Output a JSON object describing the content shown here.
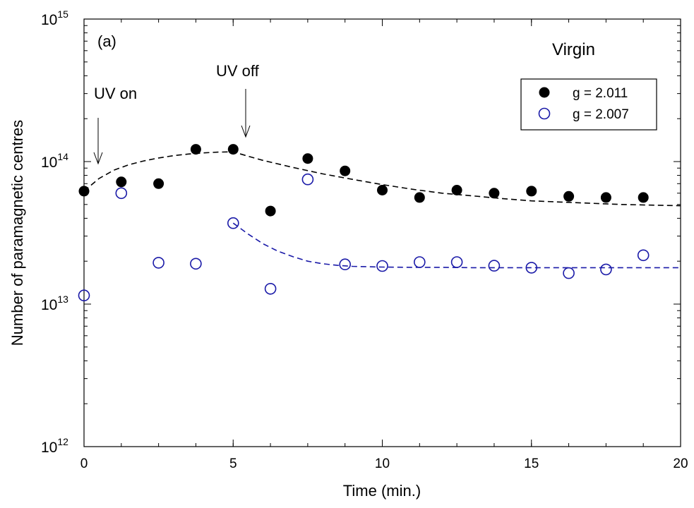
{
  "chart_data": {
    "type": "scatter",
    "xlabel": "Time (min.)",
    "ylabel": "Number of paramagnetic centres",
    "xlim": [
      0,
      20
    ],
    "ylim": [
      1000000000000.0,
      1000000000000000.0
    ],
    "yscale": "log",
    "x_ticks": [
      0,
      5,
      10,
      15,
      20
    ],
    "x_tick_labels": [
      "0",
      "5",
      "10",
      "15",
      "20"
    ],
    "y_ticks": [
      {
        "value": 1000000000000.0,
        "base": "10",
        "exp": "12"
      },
      {
        "value": 10000000000000.0,
        "base": "10",
        "exp": "13"
      },
      {
        "value": 100000000000000.0,
        "base": "10",
        "exp": "14"
      },
      {
        "value": 1000000000000000.0,
        "base": "10",
        "exp": "15"
      }
    ],
    "panel_label": "(a)",
    "sample_label": "Virgin",
    "legend_position": "top-right",
    "annotations": [
      {
        "text": "UV on",
        "x": 0.45,
        "y": 100000000000000.0
      },
      {
        "text": "UV off",
        "x": 5.4,
        "y": 145000000000000.0
      }
    ],
    "series": [
      {
        "name": "g = 2.011",
        "marker": "filled-circle",
        "color": "#000000",
        "x": [
          0,
          1.25,
          2.5,
          3.75,
          5,
          6.25,
          7.5,
          8.75,
          10,
          11.25,
          12.5,
          13.75,
          15,
          16.25,
          17.5,
          18.75
        ],
        "y": [
          62000000000000.0,
          72000000000000.0,
          70000000000000.0,
          122000000000000.0,
          122000000000000.0,
          45000000000000.0,
          105000000000000.0,
          86000000000000.0,
          63000000000000.0,
          56000000000000.0,
          63000000000000.0,
          60000000000000.0,
          62000000000000.0,
          57000000000000.0,
          56000000000000.0,
          56000000000000.0
        ]
      },
      {
        "name": "g = 2.007",
        "marker": "open-circle",
        "color": "#1a1aa8",
        "x": [
          0,
          1.25,
          2.5,
          3.75,
          5,
          6.25,
          7.5,
          8.75,
          10,
          11.25,
          12.5,
          13.75,
          15,
          16.25,
          17.5,
          18.75
        ],
        "y": [
          11500000000000.0,
          60000000000000.0,
          19500000000000.0,
          19200000000000.0,
          37000000000000.0,
          12800000000000.0,
          75000000000000.0,
          19000000000000.0,
          18500000000000.0,
          19700000000000.0,
          19700000000000.0,
          18600000000000.0,
          18000000000000.0,
          16500000000000.0,
          17500000000000.0,
          22000000000000.0
        ]
      }
    ],
    "fits": [
      {
        "color": "#000000",
        "x": [
          0,
          0.5,
          1,
          1.5,
          2,
          2.5,
          3,
          3.5,
          4,
          4.5,
          5,
          5.5,
          6,
          7,
          8,
          9,
          10,
          11,
          12,
          13,
          14,
          15,
          16,
          17,
          18,
          19,
          20
        ],
        "y": [
          62000000000000.0,
          76000000000000.0,
          87000000000000.0,
          95000000000000.0,
          101000000000000.0,
          106000000000000.0,
          110000000000000.0,
          113000000000000.0,
          115000000000000.0,
          116500000000000.0,
          117000000000000.0,
          109000000000000.0,
          102000000000000.0,
          91000000000000.0,
          82000000000000.0,
          75000000000000.0,
          69000000000000.0,
          64000000000000.0,
          60000000000000.0,
          57500000000000.0,
          55000000000000.0,
          53000000000000.0,
          52000000000000.0,
          51000000000000.0,
          50000000000000.0,
          49500000000000.0,
          49000000000000.0
        ]
      },
      {
        "color": "#1a1aa8",
        "x": [
          5,
          5.5,
          6,
          6.5,
          7,
          7.5,
          8,
          8.5,
          9,
          10,
          11,
          12,
          13,
          14,
          15,
          16,
          17,
          18,
          19,
          20
        ],
        "y": [
          37000000000000.0,
          31000000000000.0,
          26500000000000.0,
          23500000000000.0,
          21500000000000.0,
          20000000000000.0,
          19200000000000.0,
          18700000000000.0,
          18400000000000.0,
          18200000000000.0,
          18100000000000.0,
          18100000000000.0,
          18000000000000.0,
          18000000000000.0,
          18000000000000.0,
          18000000000000.0,
          18000000000000.0,
          18000000000000.0,
          18000000000000.0,
          18000000000000.0
        ]
      }
    ]
  }
}
